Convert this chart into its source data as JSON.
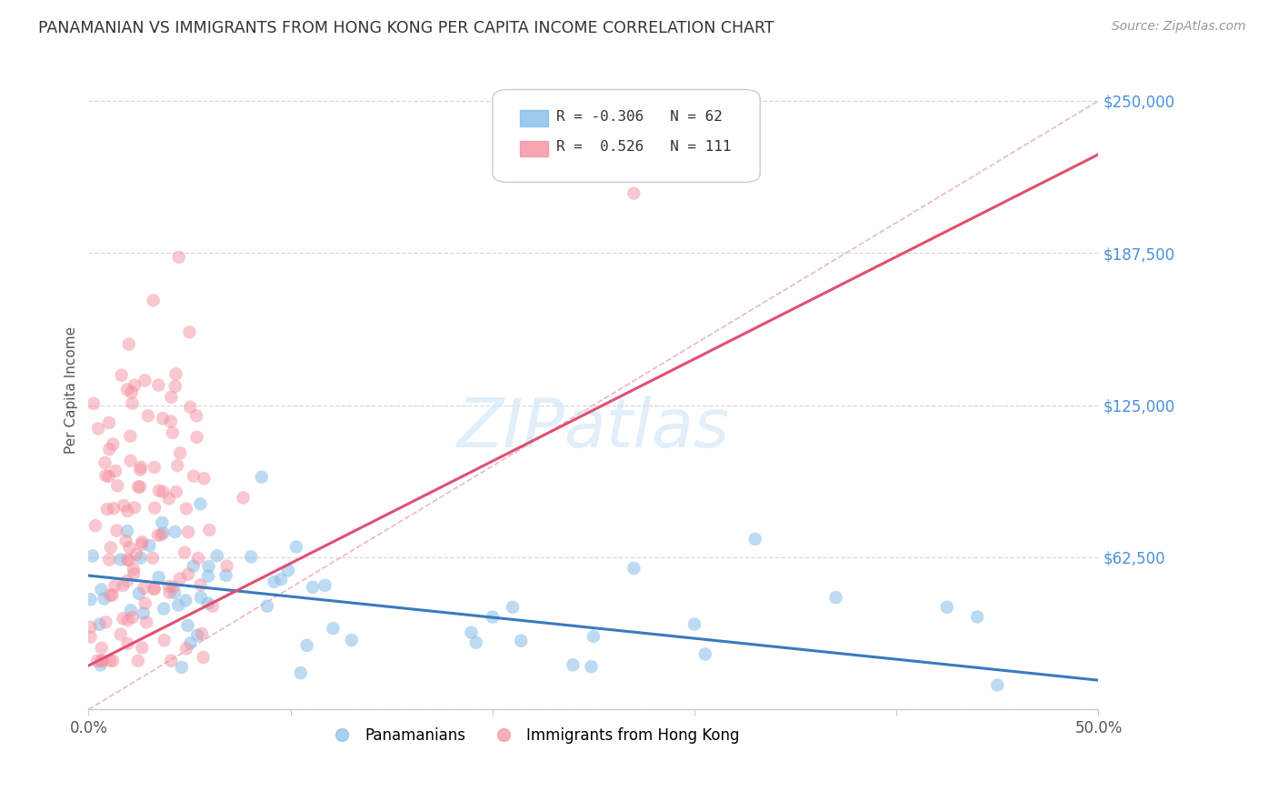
{
  "title": "PANAMANIAN VS IMMIGRANTS FROM HONG KONG PER CAPITA INCOME CORRELATION CHART",
  "source": "Source: ZipAtlas.com",
  "ylabel": "Per Capita Income",
  "xlim": [
    0,
    0.5
  ],
  "ylim": [
    0,
    262500
  ],
  "yticks": [
    0,
    62500,
    125000,
    187500,
    250000
  ],
  "ytick_labels": [
    "",
    "$62,500",
    "$125,000",
    "$187,500",
    "$250,000"
  ],
  "xticks": [
    0.0,
    0.1,
    0.2,
    0.3,
    0.4,
    0.5
  ],
  "blue_R": -0.306,
  "blue_N": 62,
  "pink_R": 0.526,
  "pink_N": 111,
  "legend_label_blue": "Panamanians",
  "legend_label_pink": "Immigrants from Hong Kong",
  "watermark": "ZIPatlas",
  "background_color": "#ffffff",
  "grid_color": "#d0d0d0",
  "blue_color": "#85bce8",
  "blue_line_color": "#3a7abf",
  "pink_color": "#f490a0",
  "pink_line_color": "#e05070",
  "diag_line_color": "#e8b0c0",
  "title_color": "#333333",
  "source_color": "#999999",
  "ytick_color": "#4a90d9",
  "seed": 7,
  "blue_line_x0": 0.0,
  "blue_line_y0": 55000,
  "blue_line_x1": 0.5,
  "blue_line_y1": 12000,
  "pink_line_x0": 0.0,
  "pink_line_y0": 18000,
  "pink_line_x1": 0.5,
  "pink_line_y1": 228000
}
